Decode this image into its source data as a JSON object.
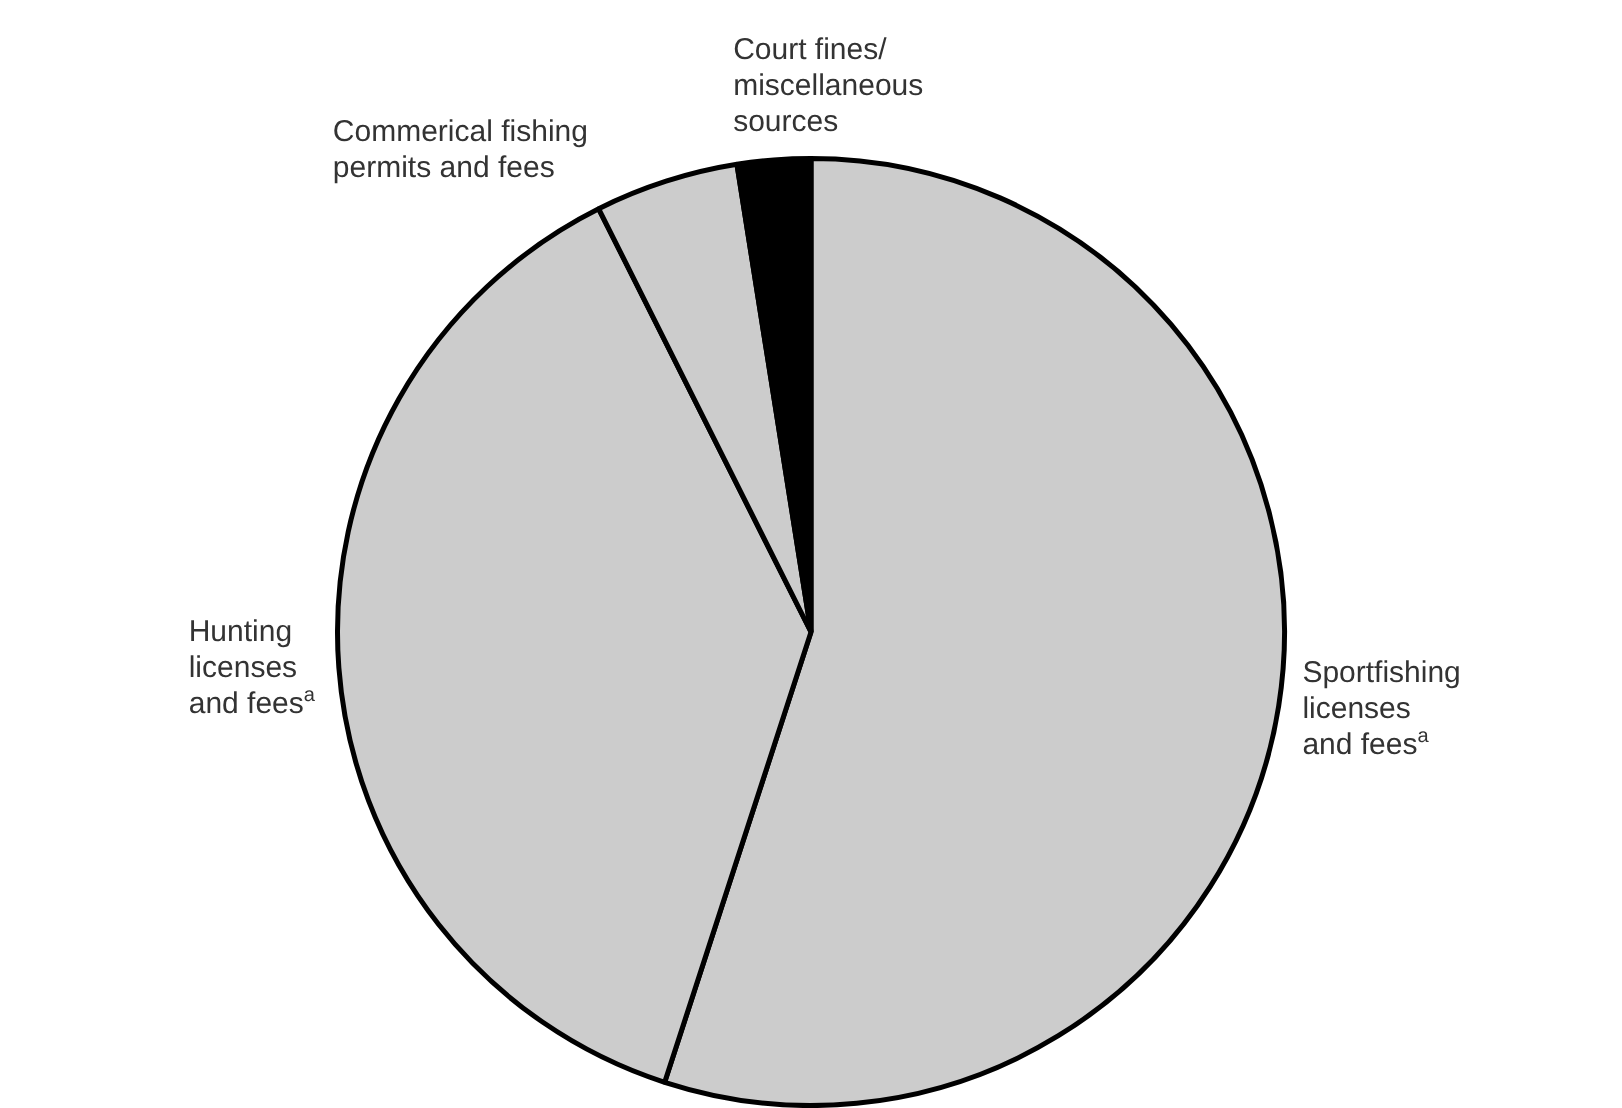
{
  "chart_data": {
    "type": "pie",
    "categories": [
      "Sportfishing\nlicenses\nand fees$^{a}$",
      "Hunting\nlicenses\nand fees$^{a}$",
      "Commerical fishing\npermits and fees",
      "Court fines/\nmiscellaneous\nsources"
    ],
    "values": [
      55.0,
      37.6,
      4.9,
      2.5
    ],
    "colors": [
      "#cccccc",
      "#cccccc",
      "#cccccc",
      "#000000"
    ],
    "legend": false
  }
}
